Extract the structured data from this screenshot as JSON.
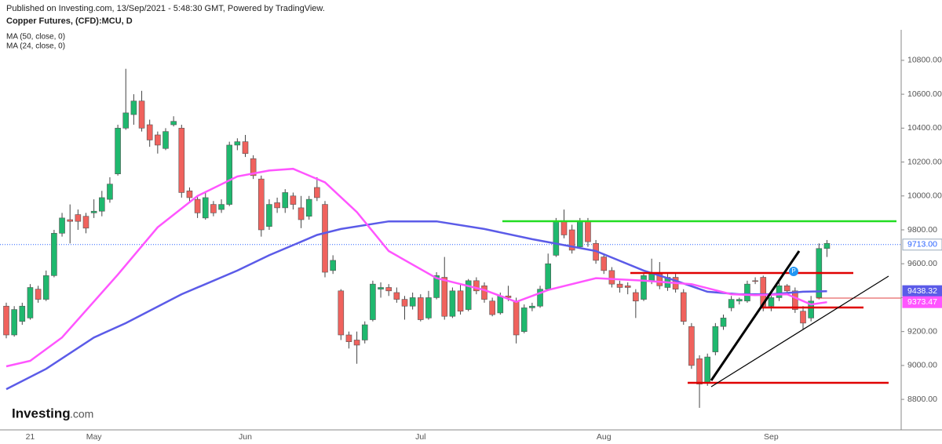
{
  "header": {
    "published": "Published on Investing.com, 13/Sep/2021 - 5:48:30 GMT, Powered by TradingView.",
    "logo": "Investing",
    "logo_suffix": ".com"
  },
  "chart_data": {
    "type": "candlestick",
    "title": "Copper Futures, (CFD):MCU, D",
    "categories": [
      null,
      null,
      null,
      "21",
      null,
      null,
      null,
      null,
      null,
      null,
      null,
      "May",
      null,
      null,
      null,
      null,
      null,
      null,
      null,
      null,
      null,
      null,
      null,
      null,
      null,
      null,
      null,
      null,
      null,
      null,
      "Jun",
      null,
      null,
      null,
      null,
      null,
      null,
      null,
      null,
      null,
      null,
      null,
      null,
      null,
      null,
      null,
      null,
      null,
      null,
      null,
      null,
      null,
      "Jul",
      null,
      null,
      null,
      null,
      null,
      null,
      null,
      null,
      null,
      null,
      null,
      null,
      null,
      null,
      null,
      null,
      null,
      null,
      null,
      null,
      null,
      null,
      "Aug",
      null,
      null,
      null,
      null,
      null,
      null,
      null,
      null,
      null,
      null,
      null,
      null,
      null,
      null,
      null,
      null,
      null,
      null,
      null,
      null,
      "Sep",
      null,
      null,
      null,
      null,
      null,
      null,
      null
    ],
    "open": [
      9350,
      9180,
      9260,
      9280,
      9450,
      9390,
      9530,
      9780,
      9860,
      9890,
      9880,
      9900,
      9910,
      9980,
      10130,
      10400,
      10480,
      10560,
      10420,
      10360,
      10280,
      10420,
      10400,
      10030,
      9980,
      9870,
      9950,
      9920,
      9950,
      10300,
      10320,
      10220,
      10100,
      9820,
      9960,
      9930,
      10000,
      9930,
      9880,
      10050,
      9950,
      9560,
      9440,
      9180,
      9150,
      9150,
      9270,
      9450,
      9460,
      9430,
      9390,
      9350,
      9400,
      9280,
      9400,
      9520,
      9290,
      9440,
      9330,
      9500,
      9470,
      9380,
      9310,
      9410,
      9380,
      9200,
      9340,
      9350,
      9450,
      9650,
      9850,
      9800,
      9700,
      9850,
      9720,
      9640,
      9560,
      9480,
      9470,
      9430,
      9390,
      9500,
      9540,
      9460,
      9520,
      9430,
      9230,
      9040,
      8900,
      9080,
      9230,
      9340,
      9380,
      9380,
      9500,
      9520,
      9350,
      9400,
      9470,
      9440,
      9320,
      9280,
      9400,
      9690
    ],
    "high": [
      9370,
      9350,
      9370,
      9480,
      9470,
      9560,
      9800,
      9900,
      9950,
      9920,
      9900,
      9980,
      10030,
      10110,
      10420,
      10750,
      10600,
      10620,
      10450,
      10380,
      10400,
      10470,
      10420,
      10050,
      10000,
      10020,
      9970,
      9980,
      10320,
      10340,
      10360,
      10240,
      10120,
      9980,
      9990,
      10040,
      10020,
      10000,
      10000,
      10110,
      9970,
      9650,
      9450,
      9200,
      9200,
      9260,
      9500,
      9490,
      9480,
      9460,
      9410,
      9430,
      9420,
      9440,
      9550,
      9640,
      9460,
      9480,
      9510,
      9520,
      9490,
      9400,
      9430,
      9470,
      9400,
      9360,
      9370,
      9470,
      9660,
      9870,
      9920,
      9830,
      9870,
      9870,
      9740,
      9660,
      9580,
      9500,
      9490,
      9450,
      9550,
      9630,
      9610,
      9540,
      9540,
      9450,
      9250,
      9060,
      9070,
      9250,
      9300,
      9410,
      9400,
      9500,
      9520,
      9530,
      9440,
      9490,
      9480,
      9460,
      9350,
      9410,
      9720,
      9740
    ],
    "low": [
      9160,
      9170,
      9240,
      9270,
      9370,
      9380,
      9520,
      9760,
      9720,
      9800,
      9780,
      9870,
      9880,
      9960,
      10120,
      10390,
      10420,
      10380,
      10290,
      10250,
      10270,
      10410,
      9990,
      9960,
      9870,
      9860,
      9880,
      9900,
      9940,
      10270,
      10230,
      10100,
      9760,
      9800,
      9900,
      9900,
      9920,
      9810,
      9860,
      9970,
      9520,
      9540,
      9150,
      9100,
      9010,
      9130,
      9260,
      9400,
      9410,
      9370,
      9270,
      9330,
      9260,
      9270,
      9390,
      9270,
      9280,
      9300,
      9320,
      9420,
      9370,
      9290,
      9300,
      9380,
      9130,
      9190,
      9320,
      9340,
      9440,
      9640,
      9750,
      9660,
      9690,
      9700,
      9600,
      9540,
      9460,
      9430,
      9420,
      9280,
      9380,
      9480,
      9450,
      9440,
      9430,
      9240,
      8980,
      8750,
      8880,
      9060,
      9210,
      9320,
      9360,
      9370,
      9480,
      9320,
      9320,
      9380,
      9420,
      9310,
      9210,
      9260,
      9390,
      9640
    ],
    "close": [
      9180,
      9330,
      9350,
      9460,
      9390,
      9530,
      9780,
      9870,
      9850,
      9850,
      9810,
      9910,
      9990,
      10070,
      10400,
      10490,
      10560,
      10400,
      10330,
      10300,
      10380,
      10440,
      10020,
      9990,
      9900,
      9990,
      9900,
      9950,
      10300,
      10320,
      10250,
      10120,
      9800,
      9950,
      9930,
      10020,
      9950,
      9860,
      9980,
      9990,
      9550,
      9620,
      9180,
      9140,
      9120,
      9240,
      9480,
      9460,
      9440,
      9390,
      9350,
      9400,
      9270,
      9400,
      9530,
      9290,
      9440,
      9320,
      9500,
      9440,
      9390,
      9300,
      9410,
      9400,
      9180,
      9340,
      9350,
      9450,
      9600,
      9850,
      9770,
      9680,
      9850,
      9730,
      9620,
      9560,
      9480,
      9460,
      9460,
      9380,
      9530,
      9540,
      9470,
      9520,
      9450,
      9260,
      9000,
      8890,
      9050,
      9230,
      9280,
      9390,
      9390,
      9480,
      9500,
      9350,
      9400,
      9470,
      9440,
      9330,
      9250,
      9380,
      9690,
      9720
    ],
    "up_color": "#1fb86e",
    "down_color": "#f0625d",
    "series": [
      {
        "name": "MA (50, close, 0)",
        "color": "#5b5be8",
        "x": [
          0,
          5,
          11,
          15,
          22,
          29,
          33,
          39,
          42,
          48,
          54,
          60,
          66,
          74,
          80,
          84,
          88,
          92,
          96,
          100,
          103
        ],
        "values": [
          8860,
          8980,
          9165,
          9250,
          9420,
          9560,
          9650,
          9770,
          9805,
          9850,
          9850,
          9805,
          9745,
          9675,
          9560,
          9500,
          9435,
          9420,
          9420,
          9435,
          9438.32
        ],
        "last_label": "9438.32"
      },
      {
        "name": "MA (24, close, 0)",
        "color": "#ff55ff",
        "x": [
          0,
          3,
          7,
          14,
          19,
          24,
          29,
          33,
          36,
          40,
          44,
          48,
          54,
          60,
          64,
          68,
          74,
          80,
          86,
          91,
          94,
          98,
          101,
          103
        ],
        "values": [
          8995,
          9027,
          9165,
          9536,
          9815,
          10000,
          10115,
          10150,
          10160,
          10080,
          9905,
          9675,
          9515,
          9445,
          9375,
          9445,
          9515,
          9500,
          9480,
          9420,
          9415,
          9420,
          9360,
          9373.47
        ],
        "last_label": "9373.47"
      }
    ],
    "last_price": {
      "value": 9713,
      "label": "9713.00"
    },
    "ylim": [
      8620,
      10980
    ],
    "yticks": [
      {
        "value": 8800,
        "label": "8800.00"
      },
      {
        "value": 9000,
        "label": "9000.00"
      },
      {
        "value": 9200,
        "label": "9200.00"
      },
      {
        "value": 9400,
        "label": "9400.00"
      },
      {
        "value": 9600,
        "label": "9600.00"
      },
      {
        "value": 9800,
        "label": "9800.00"
      },
      {
        "value": 10000,
        "label": "10000.00"
      },
      {
        "value": 10200,
        "label": "10200.00"
      },
      {
        "value": 10400,
        "label": "10400.00"
      },
      {
        "value": 10600,
        "label": "10600.00"
      },
      {
        "value": 10800,
        "label": "10800.00"
      }
    ],
    "grid": false
  }
}
